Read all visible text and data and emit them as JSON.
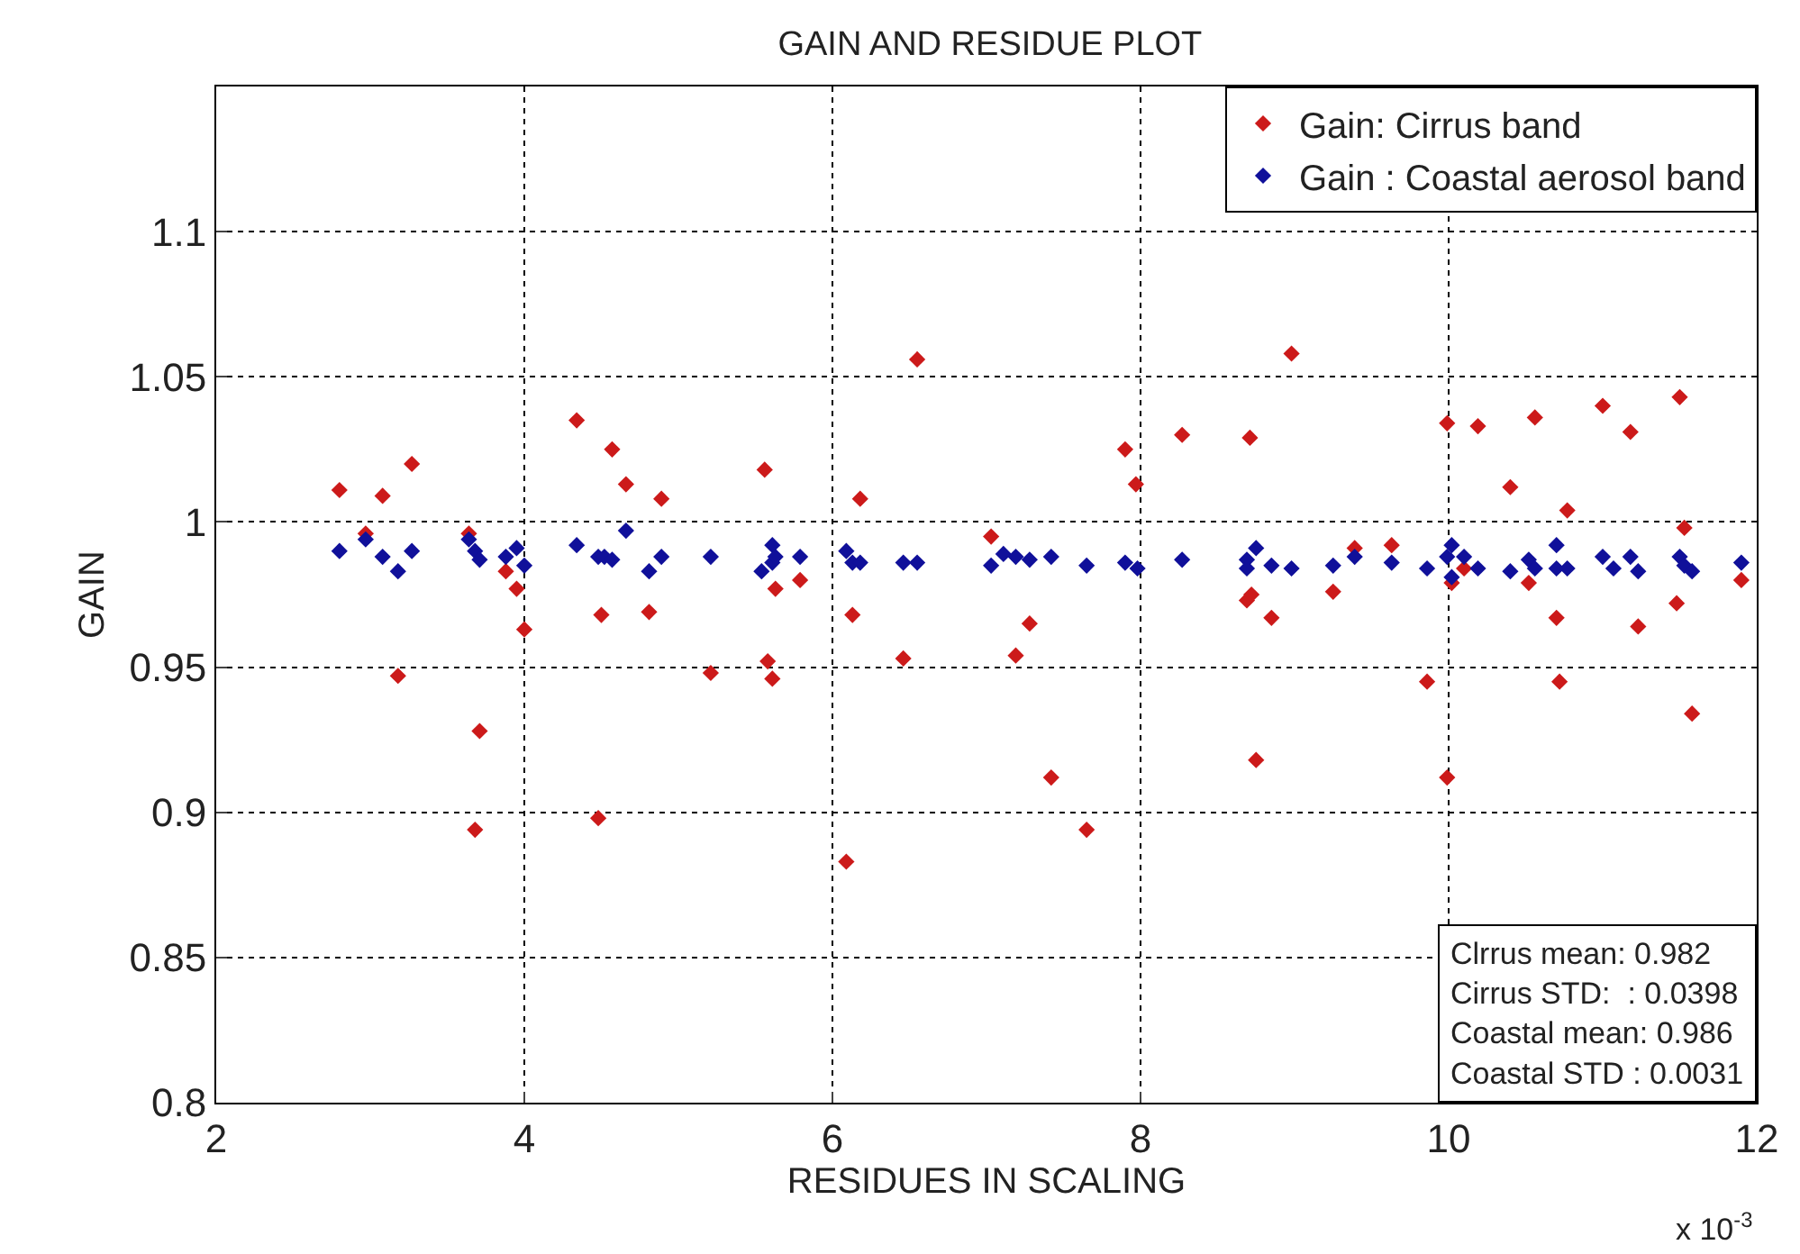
{
  "chart_data": {
    "type": "scatter",
    "title": "GAIN AND RESIDUE PLOT",
    "xlabel": "RESIDUES IN SCALING",
    "ylabel": "GAIN",
    "series": [
      {
        "name": "Gain: Cirrus band",
        "color": "#cc1a1a",
        "x": [
          2.8,
          3.08,
          3.27,
          2.97,
          3.18,
          3.64,
          3.71,
          3.68,
          3.88,
          3.95,
          4.0,
          4.34,
          4.57,
          4.66,
          4.89,
          4.5,
          4.81,
          4.48,
          5.21,
          5.56,
          5.58,
          5.61,
          5.63,
          5.79,
          6.55,
          6.18,
          6.13,
          6.46,
          6.09,
          7.03,
          7.19,
          7.28,
          7.42,
          7.65,
          7.9,
          7.97,
          8.27,
          8.71,
          8.69,
          8.72,
          8.85,
          8.75,
          8.98,
          9.25,
          9.39,
          9.63,
          9.86,
          9.99,
          9.99,
          10.02,
          10.1,
          10.19,
          10.4,
          10.52,
          10.56,
          10.7,
          10.72,
          10.77,
          11.0,
          11.18,
          11.23,
          11.48,
          11.5,
          11.53,
          11.58,
          11.9
        ],
        "values": [
          1.011,
          1.009,
          1.02,
          0.996,
          0.947,
          0.996,
          0.928,
          0.894,
          0.983,
          0.977,
          0.963,
          1.035,
          1.025,
          1.013,
          1.008,
          0.968,
          0.969,
          0.898,
          0.948,
          1.018,
          0.952,
          0.946,
          0.977,
          0.98,
          1.056,
          1.008,
          0.968,
          0.953,
          0.883,
          0.995,
          0.954,
          0.965,
          0.912,
          0.894,
          1.025,
          1.013,
          1.03,
          1.029,
          0.973,
          0.975,
          0.967,
          0.918,
          1.058,
          0.976,
          0.991,
          0.992,
          0.945,
          1.034,
          0.912,
          0.979,
          0.984,
          1.033,
          1.012,
          0.979,
          1.036,
          0.967,
          0.945,
          1.004,
          1.04,
          1.031,
          0.964,
          0.972,
          1.043,
          0.998,
          0.934,
          0.98
        ]
      },
      {
        "name": "Gain : Coastal aerosol band",
        "color": "#10109a",
        "x": [
          2.8,
          2.97,
          3.08,
          3.18,
          3.27,
          3.64,
          3.68,
          3.71,
          3.88,
          3.95,
          4.0,
          4.34,
          4.48,
          4.52,
          4.57,
          4.66,
          4.81,
          4.89,
          5.21,
          5.54,
          5.61,
          5.61,
          5.63,
          5.79,
          6.09,
          6.13,
          6.18,
          6.46,
          6.55,
          7.03,
          7.11,
          7.19,
          7.28,
          7.42,
          7.65,
          7.9,
          7.98,
          8.27,
          8.69,
          8.69,
          8.75,
          8.85,
          8.98,
          9.25,
          9.39,
          9.63,
          9.86,
          9.99,
          10.02,
          10.02,
          10.1,
          10.19,
          10.4,
          10.52,
          10.56,
          10.7,
          10.7,
          10.77,
          11.0,
          11.07,
          11.18,
          11.23,
          11.5,
          11.53,
          11.58,
          11.9
        ],
        "values": [
          0.99,
          0.994,
          0.988,
          0.983,
          0.99,
          0.994,
          0.99,
          0.987,
          0.988,
          0.991,
          0.985,
          0.992,
          0.988,
          0.988,
          0.987,
          0.997,
          0.983,
          0.988,
          0.988,
          0.983,
          0.992,
          0.986,
          0.988,
          0.988,
          0.99,
          0.986,
          0.986,
          0.986,
          0.986,
          0.985,
          0.989,
          0.988,
          0.987,
          0.988,
          0.985,
          0.986,
          0.984,
          0.987,
          0.987,
          0.984,
          0.991,
          0.985,
          0.984,
          0.985,
          0.988,
          0.986,
          0.984,
          0.988,
          0.992,
          0.981,
          0.988,
          0.984,
          0.983,
          0.987,
          0.984,
          0.992,
          0.984,
          0.984,
          0.988,
          0.984,
          0.988,
          0.983,
          0.988,
          0.985,
          0.983,
          0.986
        ]
      }
    ],
    "xlim": [
      2,
      12
    ],
    "xticks": [
      2,
      4,
      6,
      8,
      10,
      12
    ],
    "ylim": [
      0.8,
      1.15
    ],
    "yticks": [
      0.8,
      0.85,
      0.9,
      0.95,
      1,
      1.05,
      1.1
    ],
    "grid": true,
    "legend": "top right",
    "marker": "diamond",
    "annotations": [
      "x 10$^{-3}$",
      "Clrrus mean: 0.982\nCirrus STD:  : 0.0398\nCoastal mean: 0.986\nCoastal STD : 0.0031"
    ]
  }
}
